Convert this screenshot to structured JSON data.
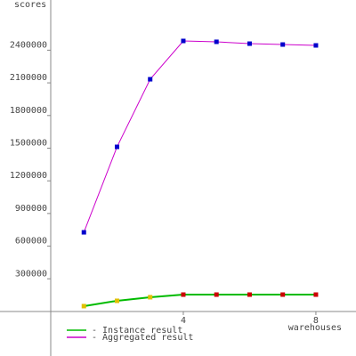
{
  "chart_data": {
    "type": "line",
    "y_label": "scores",
    "x_label": "warehouses",
    "x": [
      1,
      2,
      3,
      4,
      5,
      6,
      7,
      8
    ],
    "series": [
      {
        "name": "- Instance result",
        "color": "#00bb00",
        "marker_colors": [
          "#e0c000",
          "#e0c000",
          "#e0c000",
          "#cc0000",
          "#cc0000",
          "#cc0000",
          "#cc0000",
          "#cc0000"
        ],
        "values": [
          49000,
          98000,
          131000,
          155000,
          155000,
          155000,
          155000,
          155000
        ]
      },
      {
        "name": "- Aggregated result",
        "color": "#cc00cc",
        "marker_colors": [
          "#0000cc",
          "#0000cc",
          "#0000cc",
          "#0000cc",
          "#0000cc",
          "#0000cc",
          "#0000cc",
          "#0000cc"
        ],
        "values": [
          727000,
          1512000,
          2133000,
          2485000,
          2477000,
          2460000,
          2452000,
          2444000
        ]
      }
    ],
    "xlim": [
      0,
      9.21
    ],
    "ylim": [
      -409000,
      2861000
    ],
    "xticks": [
      4,
      8
    ],
    "yticks": [
      300000,
      600000,
      900000,
      1200000,
      1500000,
      1800000,
      2100000,
      2400000
    ]
  }
}
